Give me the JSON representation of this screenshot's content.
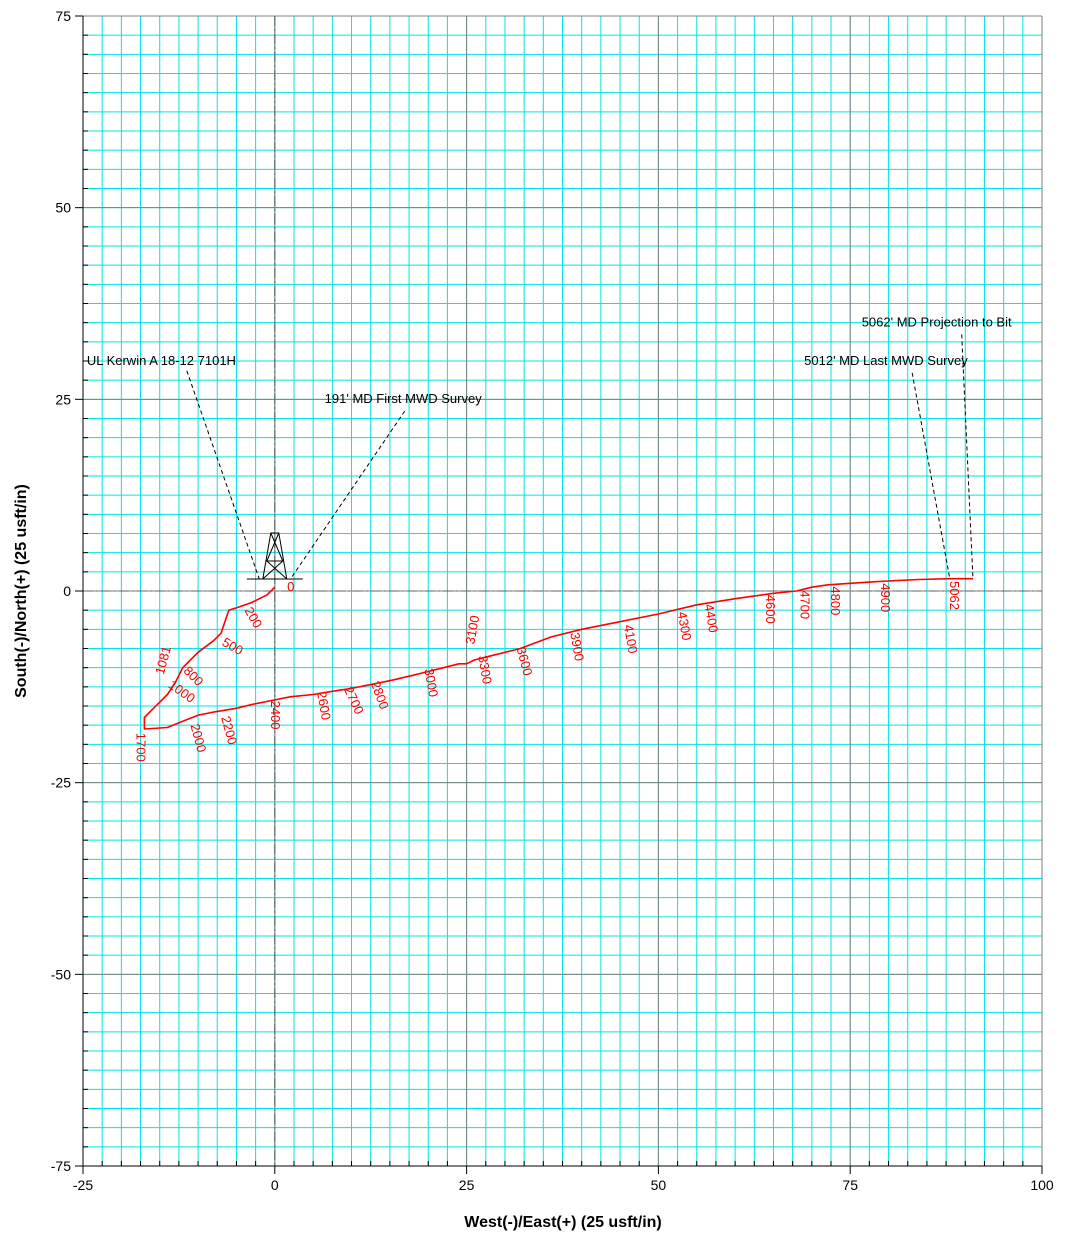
{
  "chart_data": {
    "type": "line",
    "xlabel": "West(-)/East(+) (25 usft/in)",
    "ylabel": "South(-)/North(+) (25 usft/in)",
    "xlim": [
      -25,
      100
    ],
    "ylim": [
      -75,
      75
    ],
    "x_ticks": [
      -25,
      0,
      25,
      50,
      75,
      100
    ],
    "y_ticks": [
      75,
      50,
      25,
      0,
      -25,
      -50,
      -75
    ],
    "grid": true,
    "colors": {
      "minor_grid": "#00e5e5",
      "major_grid": "#808080",
      "trajectory": "#ff0000",
      "reference_line": "#606060"
    },
    "series": [
      {
        "x": [
          0,
          -1,
          -3,
          -5,
          -6,
          -6.5,
          -7,
          -8,
          -10,
          -12,
          -13,
          -14,
          -15,
          -16,
          -16.5,
          -17,
          -17,
          -14,
          -12,
          -10,
          -8,
          -5,
          -3,
          0,
          2,
          5,
          8,
          10,
          12,
          15,
          18,
          20,
          22,
          24,
          25,
          26,
          28,
          32,
          36,
          40,
          45,
          50,
          55,
          60,
          65,
          68,
          70,
          72,
          75,
          78,
          80,
          84,
          88,
          91
        ],
        "y": [
          0.5,
          -0.5,
          -1.5,
          -2.2,
          -2.5,
          -4,
          -5.5,
          -6.5,
          -8,
          -10,
          -12,
          -13.5,
          -14.5,
          -15.5,
          -16,
          -16.5,
          -18,
          -17.8,
          -17,
          -16.2,
          -15.8,
          -15.3,
          -14.8,
          -14.2,
          -13.8,
          -13.5,
          -13,
          -12.7,
          -12.3,
          -11.7,
          -11,
          -10.5,
          -10,
          -9.5,
          -9.5,
          -9,
          -8.5,
          -7.5,
          -6,
          -5,
          -4,
          -3,
          -1.8,
          -1,
          -0.3,
          0,
          0.5,
          0.8,
          1.0,
          1.2,
          1.3,
          1.5,
          1.6,
          1.6
        ]
      }
    ],
    "md_labels": [
      {
        "text": "0",
        "x": 1.6,
        "y": 0,
        "rot": 0
      },
      {
        "text": "200",
        "x": -4,
        "y": -2.5,
        "rot": 60
      },
      {
        "text": "500",
        "x": -7,
        "y": -7,
        "rot": 30
      },
      {
        "text": "800",
        "x": -12,
        "y": -10.5,
        "rot": 45
      },
      {
        "text": "1000",
        "x": -14,
        "y": -12.5,
        "rot": 35
      },
      {
        "text": "1081",
        "x": -14.5,
        "y": -11,
        "rot": -75
      },
      {
        "text": "1700",
        "x": -18,
        "y": -18.5,
        "rot": 90
      },
      {
        "text": "2000",
        "x": -11,
        "y": -17.5,
        "rot": 75
      },
      {
        "text": "2200",
        "x": -7,
        "y": -16.5,
        "rot": 75
      },
      {
        "text": "2400",
        "x": -0.5,
        "y": -14.3,
        "rot": 90
      },
      {
        "text": "2600",
        "x": 5.5,
        "y": -13.2,
        "rot": 80
      },
      {
        "text": "2700",
        "x": 9,
        "y": -12.8,
        "rot": 65
      },
      {
        "text": "2800",
        "x": 12.5,
        "y": -12,
        "rot": 70
      },
      {
        "text": "3000",
        "x": 19.5,
        "y": -10.2,
        "rot": 80
      },
      {
        "text": "3100",
        "x": 26,
        "y": -7,
        "rot": -80
      },
      {
        "text": "3300",
        "x": 26.5,
        "y": -8.5,
        "rot": 80
      },
      {
        "text": "3600",
        "x": 31.5,
        "y": -7.5,
        "rot": 75
      },
      {
        "text": "3900",
        "x": 38.5,
        "y": -5.5,
        "rot": 80
      },
      {
        "text": "4100",
        "x": 45.5,
        "y": -4.5,
        "rot": 80
      },
      {
        "text": "4300",
        "x": 52.5,
        "y": -2.8,
        "rot": 80
      },
      {
        "text": "4400",
        "x": 56,
        "y": -1.8,
        "rot": 80
      },
      {
        "text": "4600",
        "x": 64,
        "y": -0.5,
        "rot": 90
      },
      {
        "text": "4700",
        "x": 68.5,
        "y": 0.1,
        "rot": 90
      },
      {
        "text": "4800",
        "x": 72.5,
        "y": 0.6,
        "rot": 90
      },
      {
        "text": "4900",
        "x": 79,
        "y": 1.0,
        "rot": 90
      },
      {
        "text": "5062",
        "x": 88,
        "y": 1.3,
        "rot": 90
      }
    ],
    "annotations": [
      {
        "text": "UL Kerwin A 18-12 7101H",
        "tx": -24.5,
        "ty": 29.5,
        "x": -2,
        "y": 1.5
      },
      {
        "text": "191' MD First MWD Survey",
        "tx": 6.5,
        "ty": 24.5,
        "x": 2,
        "y": 1.5
      },
      {
        "text": "5062' MD Projection to Bit",
        "tx": 76.5,
        "ty": 34.5,
        "x": 91,
        "y": 1.6
      },
      {
        "text": "5012' MD Last MWD Survey",
        "tx": 69,
        "ty": 29.5,
        "x": 88,
        "y": 1.5
      }
    ]
  }
}
